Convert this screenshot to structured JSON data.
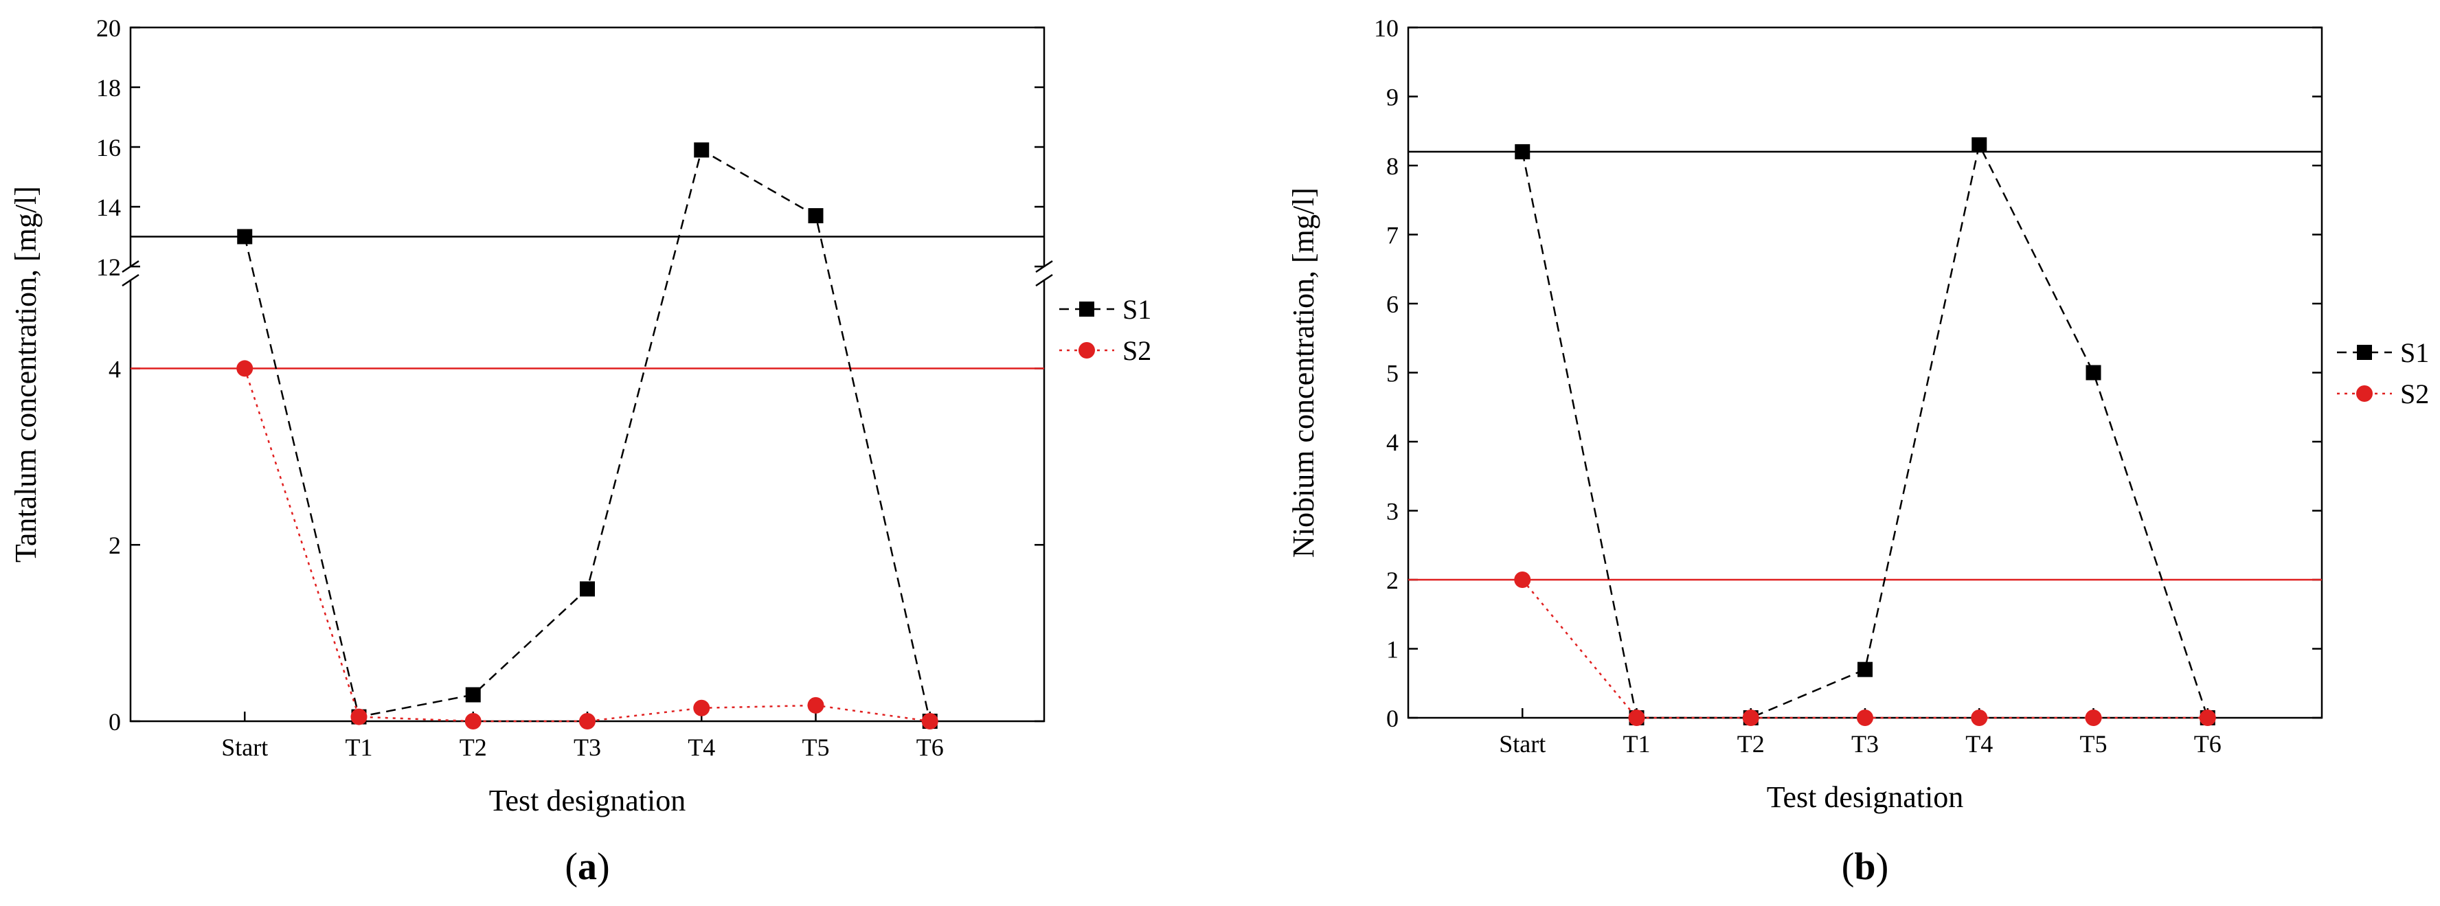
{
  "chart_data": [
    {
      "type": "line",
      "panel_label": "a",
      "xlabel": "Test designation",
      "ylabel": "Tantalum concentration, [mg/l]",
      "categories": [
        "Start",
        "T1",
        "T2",
        "T3",
        "T4",
        "T5",
        "T6"
      ],
      "y_axis_break": {
        "lower_range": [
          0,
          5
        ],
        "upper_range": [
          12,
          20
        ]
      },
      "yticks_lower": [
        "0",
        "2",
        "4"
      ],
      "yticks_upper": [
        "12",
        "14",
        "16",
        "18",
        "20"
      ],
      "series": [
        {
          "name": "S1",
          "color": "#000000",
          "marker": "square",
          "line": "dashed",
          "values": [
            13.0,
            0.05,
            0.3,
            1.5,
            15.9,
            13.7,
            0.0
          ]
        },
        {
          "name": "S2",
          "color": "#e02020",
          "marker": "circle",
          "line": "dotted",
          "values": [
            4.0,
            0.05,
            0.0,
            0.0,
            0.15,
            0.18,
            0.0
          ]
        }
      ],
      "reference_lines": [
        {
          "y": 13.0,
          "color": "#000000"
        },
        {
          "y": 4.0,
          "color": "#e02020"
        }
      ],
      "legend_position": "right",
      "grid": false
    },
    {
      "type": "line",
      "panel_label": "b",
      "xlabel": "Test designation",
      "ylabel": "Niobium concentration, [mg/l]",
      "categories": [
        "Start",
        "T1",
        "T2",
        "T3",
        "T4",
        "T5",
        "T6"
      ],
      "ylim": [
        0,
        10
      ],
      "yticks": [
        "0",
        "1",
        "2",
        "3",
        "4",
        "5",
        "6",
        "7",
        "8",
        "9",
        "10"
      ],
      "series": [
        {
          "name": "S1",
          "color": "#000000",
          "marker": "square",
          "line": "dashed",
          "values": [
            8.2,
            0.0,
            0.0,
            0.7,
            8.3,
            5.0,
            0.0
          ]
        },
        {
          "name": "S2",
          "color": "#e02020",
          "marker": "circle",
          "line": "dotted",
          "values": [
            2.0,
            0.0,
            0.0,
            0.0,
            0.0,
            0.0,
            0.0
          ]
        }
      ],
      "reference_lines": [
        {
          "y": 8.2,
          "color": "#000000"
        },
        {
          "y": 2.0,
          "color": "#e02020"
        }
      ],
      "legend_position": "right",
      "grid": false
    }
  ]
}
